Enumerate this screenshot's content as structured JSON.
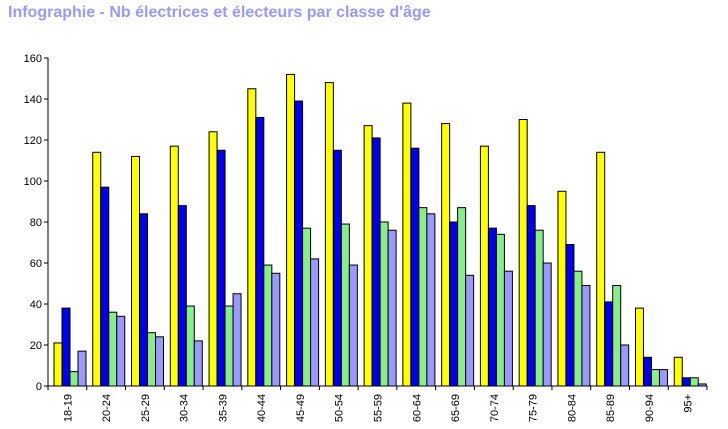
{
  "colors": {
    "title": "#9999ff",
    "series": [
      "#ffff00",
      "#0000ee",
      "#88ee88",
      "#9999ff"
    ],
    "axis": "#000000",
    "background": "#ffffff"
  },
  "chart_data": {
    "type": "bar",
    "title": "Infographie - Nb électrices et électeurs par classe d'âge",
    "xlabel": "",
    "ylabel": "",
    "ylim": [
      0,
      160
    ],
    "yticks": [
      0,
      20,
      40,
      60,
      80,
      100,
      120,
      140,
      160
    ],
    "grid": false,
    "legend": "none",
    "categories": [
      "18-19",
      "20-24",
      "25-29",
      "30-34",
      "35-39",
      "40-44",
      "45-49",
      "50-54",
      "55-59",
      "60-64",
      "65-69",
      "70-74",
      "75-79",
      "80-84",
      "85-89",
      "90-94",
      "95+"
    ],
    "series": [
      {
        "values": [
          21,
          114,
          112,
          117,
          124,
          145,
          152,
          148,
          127,
          138,
          128,
          117,
          130,
          95,
          114,
          38,
          14
        ]
      },
      {
        "values": [
          38,
          97,
          84,
          88,
          115,
          131,
          139,
          115,
          121,
          116,
          80,
          77,
          88,
          69,
          41,
          14,
          4
        ]
      },
      {
        "values": [
          7,
          36,
          26,
          39,
          39,
          59,
          77,
          79,
          80,
          87,
          87,
          74,
          76,
          56,
          49,
          8,
          4
        ]
      },
      {
        "values": [
          17,
          34,
          24,
          22,
          45,
          55,
          62,
          59,
          76,
          84,
          54,
          56,
          60,
          49,
          20,
          8,
          1
        ]
      }
    ]
  }
}
